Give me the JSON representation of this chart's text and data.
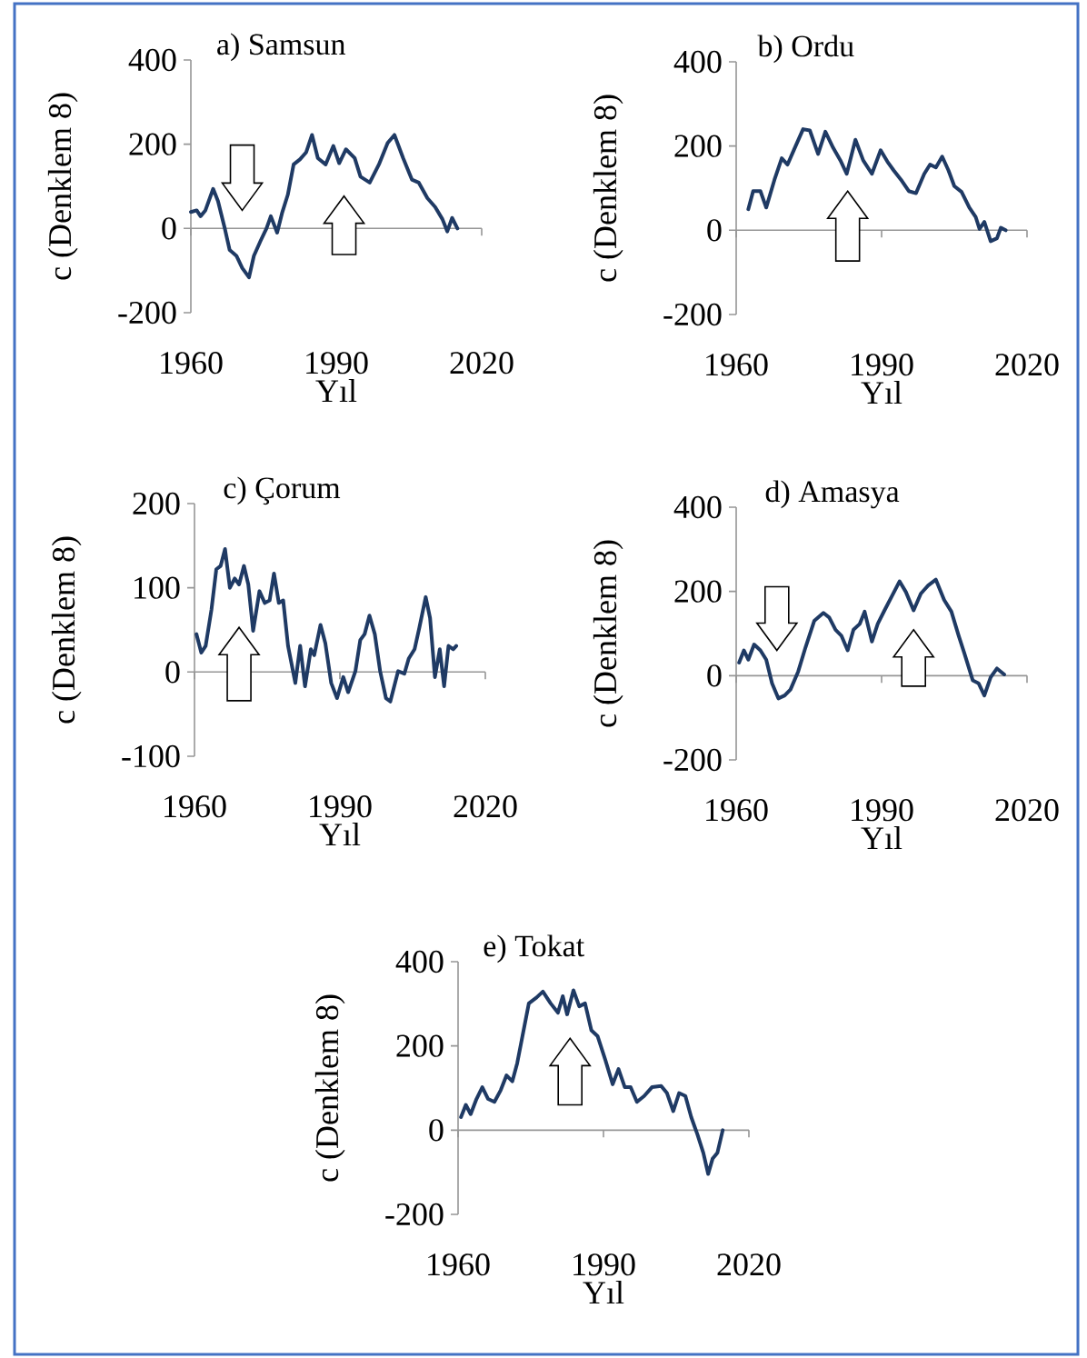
{
  "chart_data": [
    {
      "type": "line",
      "title": "a) Samsun",
      "xlabel": "Yıl",
      "ylabel": "c (Denklem 8)",
      "xlim": [
        1960,
        2020
      ],
      "xticks": [
        1960,
        1990,
        2020
      ],
      "ylim": [
        -200,
        400
      ],
      "yticks": [
        -200,
        0,
        200,
        400
      ],
      "color": "#1f3a64",
      "x": [
        1960,
        1961.2,
        1962,
        1963,
        1964.6,
        1965.6,
        1967,
        1968,
        1969.4,
        1970.6,
        1972,
        1973,
        1974.4,
        1975.6,
        1976.5,
        1977.8,
        1978.8,
        1980,
        1981.2,
        1982.5,
        1983.8,
        1985,
        1986.2,
        1987.8,
        1989.4,
        1990.6,
        1992,
        1993.8,
        1995,
        1996.9,
        1998.8,
        2000.6,
        2002,
        2003.8,
        2005.6,
        2007,
        2008.8,
        2010.4,
        2011.9,
        2012.9,
        2013.9,
        2015
      ],
      "values": [
        39,
        43,
        29,
        43,
        94,
        65,
        0,
        -51,
        -65,
        -94,
        -116,
        -65,
        -29,
        0,
        29,
        -10,
        36,
        80,
        152,
        164,
        181,
        222,
        167,
        152,
        196,
        155,
        188,
        167,
        123,
        109,
        152,
        203,
        222,
        167,
        116,
        109,
        72,
        51,
        22,
        -7,
        25,
        0
      ]
    },
    {
      "type": "line",
      "title": "b) Ordu",
      "xlabel": "Yıl",
      "ylabel": "c (Denklem 8)",
      "xlim": [
        1960,
        2020
      ],
      "xticks": [
        1960,
        1990,
        2020
      ],
      "ylim": [
        -200,
        400
      ],
      "yticks": [
        -200,
        0,
        200,
        400
      ],
      "color": "#1f3a64",
      "x": [
        1962.5,
        1963.5,
        1965,
        1966.2,
        1967.9,
        1969.4,
        1970.6,
        1972,
        1973.8,
        1975.2,
        1976.9,
        1978.4,
        1980,
        1981.5,
        1982.8,
        1984.6,
        1986.2,
        1988,
        1989.8,
        1991.2,
        1992.5,
        1994,
        1995.6,
        1997.1,
        1998.8,
        2000,
        2001.2,
        2002.5,
        2003.8,
        2005,
        2006.5,
        2008.1,
        2009.4,
        2010.2,
        2011.2,
        2012.5,
        2013.8,
        2014.6,
        2015.6
      ],
      "values": [
        50,
        93,
        93,
        54,
        120,
        171,
        156,
        193,
        240,
        237,
        181,
        234,
        196,
        166,
        134,
        215,
        166,
        134,
        190,
        163,
        142,
        120,
        93,
        88,
        134,
        156,
        149,
        175,
        142,
        105,
        91,
        54,
        32,
        3,
        20,
        -26,
        -19,
        6,
        0
      ]
    },
    {
      "type": "line",
      "title": "c) Çorum",
      "xlabel": "Yıl",
      "ylabel": "c (Denklem 8)",
      "xlim": [
        1960,
        2020
      ],
      "xticks": [
        1960,
        1990,
        2020
      ],
      "ylim": [
        -100,
        200
      ],
      "yticks": [
        -100,
        0,
        100,
        200
      ],
      "color": "#1f3a64",
      "x": [
        1960.4,
        1961.4,
        1962.3,
        1963.5,
        1964.5,
        1965.4,
        1966.3,
        1967.3,
        1968.3,
        1969.2,
        1970.2,
        1971.1,
        1972.1,
        1973.4,
        1974.5,
        1975.5,
        1976.4,
        1977.4,
        1978.3,
        1979.3,
        1980.8,
        1981.8,
        1982.8,
        1984,
        1984.7,
        1986,
        1987,
        1988.2,
        1989.4,
        1990.7,
        1991.7,
        1993.2,
        1994.2,
        1995.1,
        1996.1,
        1997.2,
        1998.3,
        1999.5,
        2000.4,
        2002,
        2003.3,
        2004.2,
        2005.4,
        2006.4,
        2007.7,
        2008.6,
        2009.6,
        2010.6,
        2011.5,
        2012.4,
        2013.4,
        2014
      ],
      "values": [
        45,
        23,
        31,
        74,
        122,
        126,
        146,
        100,
        111,
        104,
        126,
        104,
        49,
        96,
        82,
        85,
        117,
        82,
        85,
        31,
        -13,
        31,
        -17,
        27,
        20,
        56,
        34,
        -13,
        -31,
        -6,
        -24,
        1,
        38,
        45,
        67,
        45,
        1,
        -31,
        -35,
        1,
        -2,
        16,
        27,
        53,
        89,
        64,
        -6,
        27,
        -17,
        31,
        27,
        31
      ]
    },
    {
      "type": "line",
      "title": "d) Amasya",
      "xlabel": "Yıl",
      "ylabel": "c (Denklem 8)",
      "xlim": [
        1960,
        2020
      ],
      "xticks": [
        1960,
        1990,
        2020
      ],
      "ylim": [
        -200,
        400
      ],
      "yticks": [
        -200,
        0,
        200,
        400
      ],
      "color": "#1f3a64",
      "x": [
        1960.6,
        1961.6,
        1962.5,
        1963.7,
        1965,
        1966.2,
        1967.4,
        1968.7,
        1970,
        1971.2,
        1972.8,
        1974.3,
        1976.1,
        1978,
        1979.2,
        1980.5,
        1981.7,
        1983,
        1984.2,
        1985.5,
        1986.5,
        1988,
        1989.2,
        1990.6,
        1992,
        1993.7,
        1995,
        1996.6,
        1998.1,
        1999.6,
        2001.2,
        2002.9,
        2004.4,
        2005.9,
        2007.1,
        2008.8,
        2010,
        2011.2,
        2012.5,
        2013.8,
        2015.3
      ],
      "values": [
        31,
        60,
        38,
        74,
        60,
        38,
        -18,
        -54,
        -47,
        -33,
        10,
        67,
        130,
        149,
        138,
        109,
        95,
        60,
        109,
        123,
        152,
        81,
        123,
        155,
        186,
        224,
        199,
        155,
        195,
        214,
        228,
        180,
        152,
        95,
        52,
        -11,
        -18,
        -47,
        -4,
        17,
        3
      ]
    },
    {
      "type": "line",
      "title": "e) Tokat",
      "xlabel": "Yıl",
      "ylabel": "c (Denklem 8)",
      "xlim": [
        1960,
        2020
      ],
      "xticks": [
        1960,
        1990,
        2020
      ],
      "ylim": [
        -200,
        400
      ],
      "yticks": [
        -200,
        0,
        200,
        400
      ],
      "color": "#1f3a64",
      "x": [
        1960.6,
        1961.6,
        1962.6,
        1963.8,
        1965,
        1966.2,
        1967.5,
        1968.8,
        1970,
        1971.2,
        1972.2,
        1973.4,
        1974.6,
        1976.2,
        1977.5,
        1979.1,
        1980.6,
        1981.6,
        1982.5,
        1983.8,
        1985,
        1986.2,
        1987.5,
        1988.8,
        1990.4,
        1991.9,
        1993.1,
        1994.4,
        1995.6,
        1996.9,
        1998.4,
        2000,
        2001.9,
        2003.1,
        2004.4,
        2005.6,
        2006.9,
        2008.1,
        2009.4,
        2010.6,
        2011.6,
        2012.5,
        2013.5,
        2014.6
      ],
      "values": [
        31,
        60,
        38,
        74,
        102,
        74,
        67,
        95,
        130,
        116,
        159,
        230,
        301,
        315,
        329,
        301,
        279,
        318,
        275,
        332,
        294,
        301,
        237,
        223,
        166,
        109,
        145,
        102,
        102,
        67,
        81,
        102,
        105,
        88,
        45,
        88,
        81,
        31,
        -11,
        -54,
        -104,
        -68,
        -54,
        0
      ]
    }
  ]
}
